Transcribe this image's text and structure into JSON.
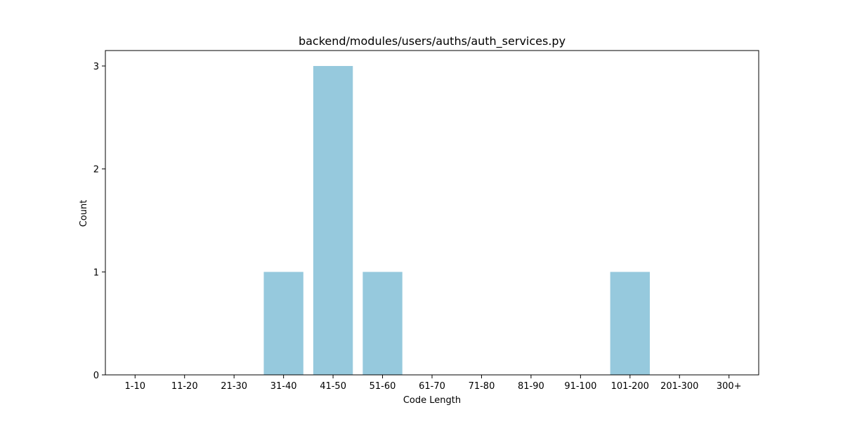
{
  "chart_data": {
    "type": "bar",
    "title": "backend/modules/users/auths/auth_services.py",
    "xlabel": "Code Length",
    "ylabel": "Count",
    "categories": [
      "1-10",
      "11-20",
      "21-30",
      "31-40",
      "41-50",
      "51-60",
      "61-70",
      "71-80",
      "81-90",
      "91-100",
      "101-200",
      "201-300",
      "300+"
    ],
    "values": [
      0,
      0,
      0,
      1,
      3,
      1,
      0,
      0,
      0,
      0,
      1,
      0,
      0
    ],
    "ylim": [
      0,
      3.15
    ],
    "yticks": [
      0,
      1,
      2,
      3
    ],
    "grid": false,
    "bar_color": "#96c9dd"
  }
}
